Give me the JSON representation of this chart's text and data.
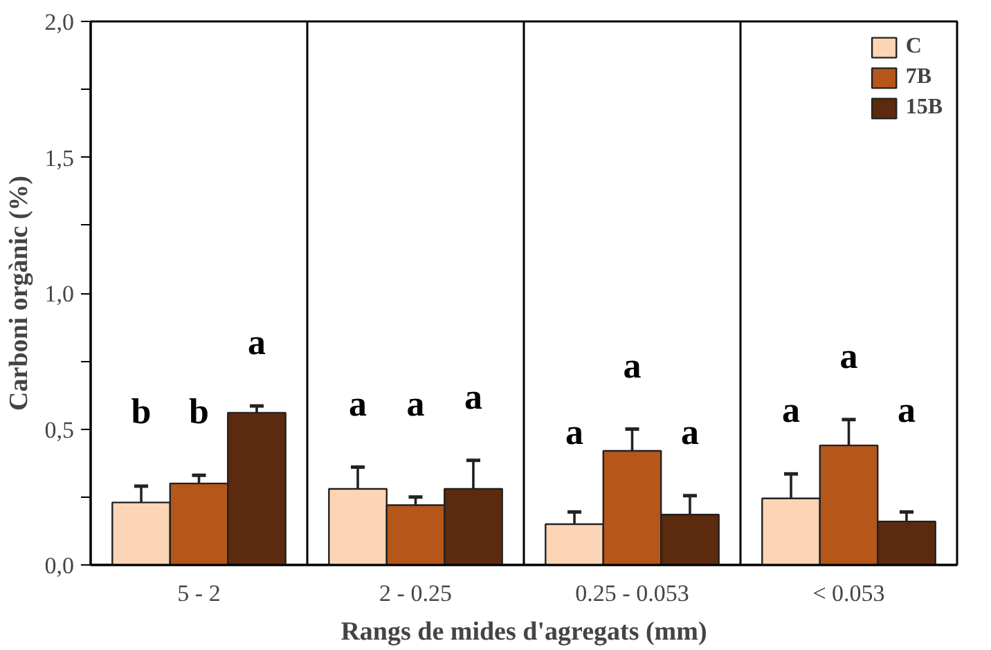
{
  "chart_data": {
    "type": "bar",
    "xlabel": "Rangs de mides d'agregats (mm)",
    "ylabel": "Carboni orgànic (%)",
    "categories": [
      "5 - 2",
      "2 - 0.25",
      "0.25 - 0.053",
      "< 0.053"
    ],
    "series": [
      {
        "name": "C",
        "color": "#fbd5b5",
        "values": [
          0.23,
          0.28,
          0.15,
          0.245
        ],
        "errors": [
          [
            0.23,
            0.29
          ],
          [
            0.28,
            0.36
          ],
          [
            0.15,
            0.195
          ],
          [
            0.245,
            0.335
          ]
        ]
      },
      {
        "name": "7B",
        "color": "#b5561a",
        "values": [
          0.3,
          0.22,
          0.42,
          0.44
        ],
        "errors": [
          [
            0.3,
            0.33
          ],
          [
            0.22,
            0.25
          ],
          [
            0.42,
            0.5
          ],
          [
            0.44,
            0.535
          ]
        ]
      },
      {
        "name": "15B",
        "color": "#5c2a0e",
        "values": [
          0.56,
          0.28,
          0.185,
          0.16
        ],
        "errors": [
          [
            0.56,
            0.585
          ],
          [
            0.28,
            0.385
          ],
          [
            0.185,
            0.255
          ],
          [
            0.16,
            0.195
          ]
        ]
      }
    ],
    "annotations": [
      "b",
      "b",
      "a",
      "a",
      "a",
      "a",
      "a",
      "a",
      "a",
      "a",
      "a",
      "a"
    ],
    "ylim": [
      0,
      2.0
    ],
    "yticks": [
      {
        "value": 0,
        "label": "0,0"
      },
      {
        "value": 0.25,
        "label": null
      },
      {
        "value": 0.5,
        "label": "0,5"
      },
      {
        "value": 0.75,
        "label": null
      },
      {
        "value": 1.0,
        "label": "1,0"
      },
      {
        "value": 1.25,
        "label": null
      },
      {
        "value": 1.5,
        "label": "1,5"
      },
      {
        "value": 1.75,
        "label": null
      },
      {
        "value": 2.0,
        "label": "2,0"
      }
    ],
    "grid": false,
    "legend": "top right"
  }
}
